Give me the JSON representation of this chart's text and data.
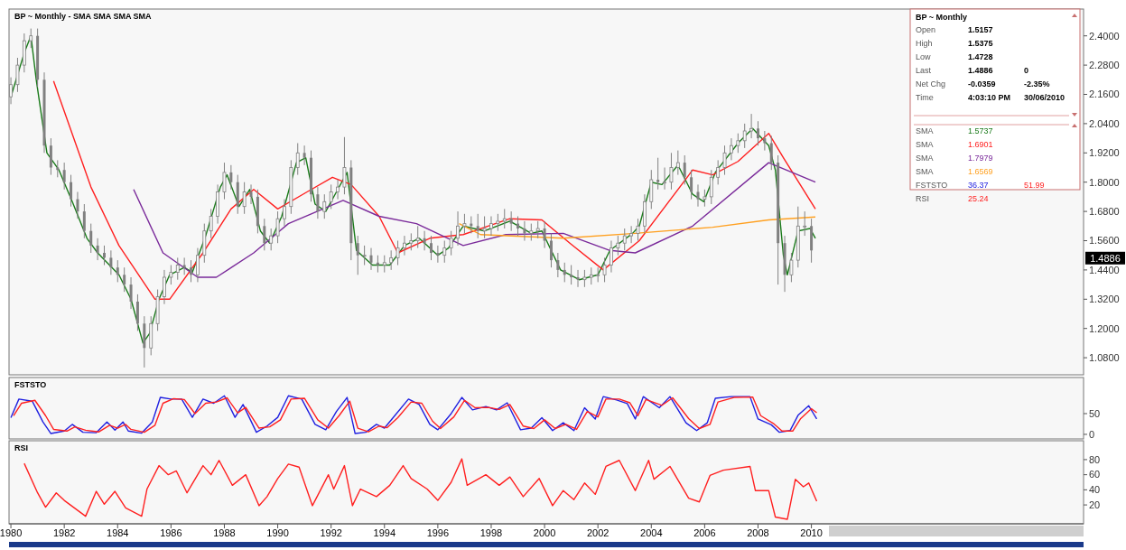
{
  "chart_data": [
    {
      "type": "candlestick",
      "title": "BP ~ Monthly  -  SMA SMA SMA SMA",
      "color": "#808080",
      "xlim": [
        1979.93,
        2020.2
      ],
      "ylim": [
        1.01,
        2.51
      ],
      "tick_labels": "y",
      "yticks": [
        {
          "value": 2.4,
          "label": "2.4000"
        },
        {
          "value": 2.28,
          "label": "2.2800"
        },
        {
          "value": 2.16,
          "label": "2.1600"
        },
        {
          "value": 2.04,
          "label": "2.0400"
        },
        {
          "value": 1.92,
          "label": "1.9200"
        },
        {
          "value": 1.8,
          "label": "1.8000"
        },
        {
          "value": 1.68,
          "label": "1.6800"
        },
        {
          "value": 1.56,
          "label": "1.5600"
        },
        {
          "value": 1.44,
          "label": "1.4400"
        },
        {
          "value": 1.32,
          "label": "1.3200"
        },
        {
          "value": 1.2,
          "label": "1.2000"
        },
        {
          "value": 1.08,
          "label": "1.0800"
        }
      ],
      "annotations": [
        {
          "text": "1.4886",
          "y": 1.4886
        }
      ],
      "x": [
        1980,
        1980.25,
        1980.5,
        1980.75,
        1981,
        1981.25,
        1981.5,
        1981.75,
        1982,
        1982.25,
        1982.5,
        1982.75,
        1983,
        1983.25,
        1983.5,
        1983.75,
        1984,
        1984.25,
        1984.5,
        1984.75,
        1985,
        1985.25,
        1985.5,
        1985.75,
        1986,
        1986.25,
        1986.5,
        1986.75,
        1987,
        1987.25,
        1987.5,
        1987.75,
        1988,
        1988.25,
        1988.5,
        1988.75,
        1989,
        1989.25,
        1989.5,
        1989.75,
        1990,
        1990.25,
        1990.5,
        1990.75,
        1991,
        1991.25,
        1991.5,
        1991.75,
        1992,
        1992.25,
        1992.5,
        1992.75,
        1993,
        1993.25,
        1993.5,
        1993.75,
        1994,
        1994.25,
        1994.5,
        1994.75,
        1995,
        1995.25,
        1995.5,
        1995.75,
        1996,
        1996.25,
        1996.5,
        1996.75,
        1997,
        1997.25,
        1997.5,
        1997.75,
        1998,
        1998.25,
        1998.5,
        1998.75,
        1999,
        1999.25,
        1999.5,
        1999.75,
        2000,
        2000.25,
        2000.5,
        2000.75,
        2001,
        2001.25,
        2001.5,
        2001.75,
        2002,
        2002.25,
        2002.5,
        2002.75,
        2003,
        2003.25,
        2003.5,
        2003.75,
        2004,
        2004.25,
        2004.5,
        2004.75,
        2005,
        2005.25,
        2005.5,
        2005.75,
        2006,
        2006.25,
        2006.5,
        2006.75,
        2007,
        2007.25,
        2007.5,
        2007.75,
        2008,
        2008.25,
        2008.5,
        2008.75,
        2009,
        2009.25,
        2009.5,
        2009.75,
        2010
      ],
      "ohlc": [
        [
          2.15,
          2.23,
          2.12,
          2.2
        ],
        [
          2.2,
          2.31,
          2.17,
          2.28
        ],
        [
          2.28,
          2.41,
          2.25,
          2.38
        ],
        [
          2.38,
          2.43,
          2.35,
          2.4
        ],
        [
          2.4,
          2.43,
          2.19,
          2.22
        ],
        [
          2.22,
          2.25,
          1.92,
          1.95
        ],
        [
          1.95,
          1.98,
          1.83,
          1.86
        ],
        [
          1.86,
          1.89,
          1.82,
          1.85
        ],
        [
          1.85,
          1.88,
          1.77,
          1.8
        ],
        [
          1.8,
          1.83,
          1.7,
          1.73
        ],
        [
          1.73,
          1.76,
          1.65,
          1.68
        ],
        [
          1.68,
          1.71,
          1.57,
          1.6
        ],
        [
          1.6,
          1.63,
          1.51,
          1.54
        ],
        [
          1.54,
          1.57,
          1.48,
          1.51
        ],
        [
          1.51,
          1.54,
          1.46,
          1.49
        ],
        [
          1.49,
          1.52,
          1.42,
          1.45
        ],
        [
          1.45,
          1.48,
          1.39,
          1.42
        ],
        [
          1.42,
          1.45,
          1.35,
          1.38
        ],
        [
          1.38,
          1.41,
          1.28,
          1.31
        ],
        [
          1.31,
          1.34,
          1.19,
          1.22
        ],
        [
          1.22,
          1.25,
          1.04,
          1.12
        ],
        [
          1.12,
          1.25,
          1.09,
          1.22
        ],
        [
          1.22,
          1.36,
          1.19,
          1.33
        ],
        [
          1.33,
          1.44,
          1.3,
          1.41
        ],
        [
          1.41,
          1.46,
          1.38,
          1.43
        ],
        [
          1.43,
          1.49,
          1.4,
          1.46
        ],
        [
          1.46,
          1.49,
          1.42,
          1.45
        ],
        [
          1.45,
          1.48,
          1.39,
          1.42
        ],
        [
          1.42,
          1.53,
          1.39,
          1.5
        ],
        [
          1.5,
          1.63,
          1.47,
          1.6
        ],
        [
          1.6,
          1.69,
          1.57,
          1.66
        ],
        [
          1.66,
          1.79,
          1.63,
          1.76
        ],
        [
          1.76,
          1.88,
          1.73,
          1.84
        ],
        [
          1.84,
          1.87,
          1.77,
          1.8
        ],
        [
          1.8,
          1.83,
          1.67,
          1.7
        ],
        [
          1.7,
          1.8,
          1.67,
          1.76
        ],
        [
          1.76,
          1.79,
          1.71,
          1.74
        ],
        [
          1.74,
          1.77,
          1.59,
          1.62
        ],
        [
          1.62,
          1.65,
          1.52,
          1.55
        ],
        [
          1.55,
          1.61,
          1.52,
          1.58
        ],
        [
          1.58,
          1.68,
          1.55,
          1.65
        ],
        [
          1.65,
          1.73,
          1.62,
          1.7
        ],
        [
          1.7,
          1.89,
          1.67,
          1.86
        ],
        [
          1.86,
          1.96,
          1.83,
          1.92
        ],
        [
          1.92,
          1.95,
          1.87,
          1.9
        ],
        [
          1.9,
          1.93,
          1.72,
          1.75
        ],
        [
          1.75,
          1.78,
          1.65,
          1.68
        ],
        [
          1.68,
          1.75,
          1.65,
          1.72
        ],
        [
          1.72,
          1.79,
          1.69,
          1.76
        ],
        [
          1.76,
          1.81,
          1.73,
          1.78
        ],
        [
          1.78,
          1.985,
          1.75,
          1.86
        ],
        [
          1.86,
          1.89,
          1.48,
          1.55
        ],
        [
          1.55,
          1.58,
          1.42,
          1.5
        ],
        [
          1.5,
          1.54,
          1.46,
          1.5
        ],
        [
          1.5,
          1.53,
          1.44,
          1.47
        ],
        [
          1.47,
          1.5,
          1.43,
          1.46
        ],
        [
          1.46,
          1.5,
          1.43,
          1.47
        ],
        [
          1.47,
          1.52,
          1.44,
          1.49
        ],
        [
          1.49,
          1.56,
          1.46,
          1.53
        ],
        [
          1.53,
          1.58,
          1.5,
          1.55
        ],
        [
          1.55,
          1.59,
          1.52,
          1.56
        ],
        [
          1.56,
          1.62,
          1.53,
          1.57
        ],
        [
          1.57,
          1.6,
          1.52,
          1.55
        ],
        [
          1.55,
          1.58,
          1.48,
          1.51
        ],
        [
          1.51,
          1.54,
          1.47,
          1.5
        ],
        [
          1.5,
          1.56,
          1.47,
          1.53
        ],
        [
          1.53,
          1.6,
          1.5,
          1.57
        ],
        [
          1.57,
          1.68,
          1.54,
          1.62
        ],
        [
          1.62,
          1.67,
          1.59,
          1.63
        ],
        [
          1.63,
          1.66,
          1.59,
          1.62
        ],
        [
          1.62,
          1.67,
          1.57,
          1.6
        ],
        [
          1.6,
          1.66,
          1.57,
          1.61
        ],
        [
          1.61,
          1.66,
          1.58,
          1.63
        ],
        [
          1.63,
          1.67,
          1.6,
          1.64
        ],
        [
          1.64,
          1.69,
          1.61,
          1.65
        ],
        [
          1.65,
          1.68,
          1.6,
          1.63
        ],
        [
          1.63,
          1.66,
          1.58,
          1.61
        ],
        [
          1.61,
          1.64,
          1.56,
          1.59
        ],
        [
          1.59,
          1.63,
          1.56,
          1.6
        ],
        [
          1.6,
          1.64,
          1.57,
          1.61
        ],
        [
          1.61,
          1.64,
          1.53,
          1.56
        ],
        [
          1.56,
          1.59,
          1.45,
          1.48
        ],
        [
          1.48,
          1.51,
          1.41,
          1.44
        ],
        [
          1.44,
          1.47,
          1.39,
          1.42
        ],
        [
          1.42,
          1.46,
          1.38,
          1.41
        ],
        [
          1.41,
          1.44,
          1.37,
          1.4
        ],
        [
          1.4,
          1.44,
          1.37,
          1.41
        ],
        [
          1.41,
          1.45,
          1.38,
          1.42
        ],
        [
          1.42,
          1.45,
          1.39,
          1.42
        ],
        [
          1.42,
          1.49,
          1.39,
          1.46
        ],
        [
          1.46,
          1.56,
          1.43,
          1.53
        ],
        [
          1.53,
          1.58,
          1.5,
          1.55
        ],
        [
          1.55,
          1.61,
          1.52,
          1.58
        ],
        [
          1.58,
          1.62,
          1.55,
          1.59
        ],
        [
          1.59,
          1.65,
          1.56,
          1.62
        ],
        [
          1.62,
          1.75,
          1.59,
          1.72
        ],
        [
          1.72,
          1.85,
          1.69,
          1.81
        ],
        [
          1.81,
          1.9,
          1.77,
          1.8
        ],
        [
          1.8,
          1.86,
          1.77,
          1.8
        ],
        [
          1.8,
          1.92,
          1.77,
          1.86
        ],
        [
          1.86,
          1.93,
          1.83,
          1.88
        ],
        [
          1.88,
          1.91,
          1.79,
          1.82
        ],
        [
          1.82,
          1.85,
          1.73,
          1.76
        ],
        [
          1.76,
          1.79,
          1.7,
          1.73
        ],
        [
          1.73,
          1.77,
          1.7,
          1.74
        ],
        [
          1.74,
          1.85,
          1.71,
          1.82
        ],
        [
          1.82,
          1.89,
          1.79,
          1.86
        ],
        [
          1.86,
          1.95,
          1.83,
          1.92
        ],
        [
          1.92,
          1.98,
          1.89,
          1.95
        ],
        [
          1.95,
          2,
          1.92,
          1.97
        ],
        [
          1.97,
          2.04,
          1.94,
          2.01
        ],
        [
          2.01,
          2.08,
          1.98,
          2.02
        ],
        [
          2.02,
          2.05,
          1.95,
          1.98
        ],
        [
          1.98,
          2.01,
          1.93,
          1.96
        ],
        [
          1.96,
          1.99,
          1.85,
          1.88
        ],
        [
          1.88,
          1.91,
          1.38,
          1.55
        ],
        [
          1.55,
          1.58,
          1.35,
          1.42
        ],
        [
          1.42,
          1.51,
          1.39,
          1.48
        ],
        [
          1.48,
          1.7,
          1.45,
          1.62
        ],
        [
          1.62,
          1.68,
          1.58,
          1.62
        ],
        [
          1.62,
          1.65,
          1.47,
          1.52
        ]
      ],
      "series": [
        {
          "type": "line",
          "color": "#1a7a1a",
          "x": [
            1980,
            1980.5,
            1980.75,
            1980.95,
            1981.35,
            1981.8,
            1982.3,
            1982.85,
            1983.25,
            1984.05,
            1984.5,
            1984.95,
            1985.2,
            1985.55,
            1985.95,
            1986.5,
            1986.8,
            1987.3,
            1987.85,
            1988.1,
            1988.55,
            1988.95,
            1989.35,
            1989.7,
            1990.15,
            1990.7,
            1991.05,
            1991.4,
            1991.8,
            1992.2,
            1992.6,
            1992.95,
            1993.55,
            1994.2,
            1994.75,
            1995.3,
            1996,
            1996.4,
            1996.95,
            1997.75,
            1998.7,
            1999.5,
            1999.9,
            2000.6,
            2001.3,
            2002,
            2002.45,
            2003.3,
            2003.55,
            2004,
            2004.4,
            2005,
            2005.55,
            2005.97,
            2006.4,
            2007.25,
            2007.8,
            2008.4,
            2008.65,
            2008.95,
            2009.1,
            2009.5,
            2009.95,
            2010.15
          ],
          "values": [
            2.15,
            2.33,
            2.4,
            2.22,
            1.92,
            1.85,
            1.72,
            1.57,
            1.51,
            1.42,
            1.32,
            1.14,
            1.18,
            1.32,
            1.42,
            1.45,
            1.43,
            1.58,
            1.78,
            1.83,
            1.7,
            1.77,
            1.6,
            1.55,
            1.66,
            1.88,
            1.9,
            1.71,
            1.68,
            1.76,
            1.84,
            1.52,
            1.46,
            1.46,
            1.54,
            1.57,
            1.5,
            1.53,
            1.62,
            1.6,
            1.64,
            1.59,
            1.6,
            1.44,
            1.4,
            1.42,
            1.52,
            1.59,
            1.62,
            1.8,
            1.79,
            1.87,
            1.75,
            1.72,
            1.84,
            1.96,
            2.02,
            1.95,
            1.85,
            1.5,
            1.42,
            1.6,
            1.61,
            1.57
          ]
        },
        {
          "type": "line",
          "color": "#ff2020",
          "x": [
            1981.6,
            1983,
            1984.05,
            1985.4,
            1985.95,
            1987.2,
            1988.25,
            1989.1,
            1990,
            1991.1,
            1992.05,
            1992.75,
            1993.8,
            1994.5,
            1995.7,
            1996.95,
            1998.7,
            1999.9,
            2001,
            2002.2,
            2003.55,
            2005.55,
            2006.3,
            2007.25,
            2008.4,
            2008.95,
            2010.15
          ],
          "values": [
            2.215,
            1.78,
            1.54,
            1.32,
            1.32,
            1.51,
            1.69,
            1.77,
            1.69,
            1.76,
            1.82,
            1.79,
            1.66,
            1.51,
            1.57,
            1.585,
            1.65,
            1.645,
            1.545,
            1.44,
            1.56,
            1.85,
            1.83,
            1.885,
            2,
            1.9,
            1.69
          ]
        },
        {
          "type": "line",
          "color": "#7a2a9a",
          "x": [
            1984.6,
            1985.7,
            1987,
            1987.7,
            1989.1,
            1990.4,
            1992.45,
            1993.8,
            1995.2,
            1996.95,
            1998.55,
            2000.7,
            2002.45,
            2003.4,
            2005.55,
            2008.4,
            2010.15
          ],
          "values": [
            1.77,
            1.51,
            1.41,
            1.41,
            1.51,
            1.63,
            1.725,
            1.66,
            1.63,
            1.54,
            1.585,
            1.59,
            1.52,
            1.51,
            1.62,
            1.88,
            1.8
          ]
        },
        {
          "type": "line",
          "color": "#ffa020",
          "x": [
            1996.8,
            1997.6,
            2000.7,
            2003.4,
            2006.3,
            2008.4,
            2010.15
          ],
          "values": [
            1.63,
            1.585,
            1.57,
            1.59,
            1.615,
            1.645,
            1.657
          ]
        }
      ]
    },
    {
      "type": "line",
      "title": "FSTSTO",
      "xlim": [
        1979.93,
        2020.2
      ],
      "ylim": [
        -11,
        137
      ],
      "yticks": [
        0,
        50
      ],
      "tick_labels": "y",
      "series": [
        {
          "color": "#2020e0",
          "x": [
            1980,
            1980.3,
            1980.8,
            1981.2,
            1981.5,
            1982,
            1982.3,
            1982.7,
            1983.2,
            1983.6,
            1983.9,
            1984.2,
            1984.4,
            1984.9,
            1985.3,
            1985.6,
            1986,
            1986.4,
            1986.8,
            1987.2,
            1987.6,
            1988,
            1988.4,
            1988.7,
            1989.2,
            1989.6,
            1990,
            1990.4,
            1990.9,
            1991.4,
            1991.8,
            1992.2,
            1992.6,
            1992.9,
            1993.3,
            1993.7,
            1994,
            1994.4,
            1994.9,
            1995.3,
            1995.7,
            1996,
            1996.5,
            1996.9,
            1997.3,
            1997.8,
            1998.2,
            1998.6,
            1999.1,
            1999.5,
            1999.9,
            2000.3,
            2000.7,
            2001.1,
            2001.5,
            2001.9,
            2002.2,
            2002.7,
            2003.1,
            2003.4,
            2003.7,
            2004.3,
            2004.7,
            2005.3,
            2005.7,
            2006.1,
            2006.4,
            2007,
            2007.7,
            2008,
            2008.5,
            2008.8,
            2009.2,
            2009.5,
            2009.9,
            2010.2
          ],
          "values": [
            40,
            85,
            80,
            30,
            2,
            8,
            24,
            5,
            4,
            30,
            10,
            30,
            8,
            3,
            30,
            89,
            85,
            85,
            41,
            85,
            75,
            93,
            41,
            72,
            5,
            20,
            41,
            93,
            85,
            24,
            11,
            55,
            89,
            2,
            5,
            24,
            15,
            46,
            85,
            72,
            24,
            11,
            50,
            89,
            59,
            67,
            59,
            76,
            11,
            15,
            40,
            9,
            28,
            9,
            64,
            37,
            91,
            83,
            74,
            37,
            91,
            64,
            91,
            28,
            9,
            28,
            87,
            91,
            91,
            37,
            23,
            5,
            9,
            46,
            69,
            37
          ]
        },
        {
          "color": "#ff2020",
          "x": [
            1980.1,
            1980.4,
            1980.9,
            1981.3,
            1981.6,
            1982.1,
            1982.4,
            1982.8,
            1983.3,
            1983.7,
            1984,
            1984.3,
            1984.5,
            1985,
            1985.4,
            1985.7,
            1986.1,
            1986.5,
            1986.9,
            1987.3,
            1987.7,
            1988.1,
            1988.5,
            1988.8,
            1989.3,
            1989.7,
            1990.1,
            1990.5,
            1991,
            1991.5,
            1991.9,
            1992.3,
            1992.7,
            1993,
            1993.4,
            1993.8,
            1994.1,
            1994.5,
            1995,
            1995.4,
            1995.8,
            1996.1,
            1996.6,
            1997,
            1997.4,
            1997.9,
            1998.3,
            1998.7,
            1999.2,
            1999.6,
            2000,
            2000.4,
            2000.8,
            2001.2,
            2001.6,
            2002,
            2002.3,
            2002.8,
            2003.2,
            2003.5,
            2003.8,
            2004.4,
            2004.8,
            2005.4,
            2005.8,
            2006.2,
            2006.5,
            2007.1,
            2007.8,
            2008.1,
            2008.6,
            2008.9,
            2009.3,
            2009.6,
            2010,
            2010.2
          ],
          "values": [
            45,
            75,
            82,
            45,
            12,
            8,
            18,
            10,
            6,
            22,
            15,
            24,
            12,
            5,
            22,
            75,
            86,
            84,
            50,
            75,
            78,
            88,
            52,
            65,
            15,
            18,
            35,
            85,
            87,
            35,
            15,
            45,
            80,
            15,
            6,
            20,
            16,
            40,
            78,
            75,
            32,
            14,
            42,
            82,
            64,
            65,
            60,
            72,
            20,
            14,
            35,
            14,
            24,
            12,
            55,
            42,
            85,
            85,
            76,
            45,
            84,
            70,
            88,
            38,
            14,
            24,
            78,
            89,
            90,
            45,
            25,
            8,
            8,
            38,
            62,
            52
          ]
        }
      ]
    },
    {
      "type": "line",
      "title": "RSI",
      "xlim": [
        1979.93,
        2020.2
      ],
      "ylim": [
        -5,
        105
      ],
      "yticks": [
        20,
        40,
        60,
        80
      ],
      "xticks": [
        1980,
        1982,
        1984,
        1986,
        1988,
        1990,
        1992,
        1994,
        1996,
        1998,
        2000,
        2002,
        2004,
        2006,
        2008,
        2010
      ],
      "series": [
        {
          "color": "#ff2020",
          "x": [
            1980.5,
            1981,
            1981.3,
            1981.7,
            1982,
            1982.8,
            1983.2,
            1983.5,
            1983.9,
            1984.3,
            1984.9,
            1985.1,
            1985.55,
            1985.9,
            1986.2,
            1986.6,
            1987.2,
            1987.5,
            1987.8,
            1988.3,
            1988.8,
            1989.3,
            1989.6,
            1990,
            1990.4,
            1990.8,
            1991.3,
            1991.9,
            1992.1,
            1992.5,
            1992.8,
            1993.1,
            1993.7,
            1994.2,
            1994.7,
            1995,
            1995.6,
            1996,
            1996.5,
            1996.9,
            1997.1,
            1997.8,
            1998.3,
            1998.7,
            1999.2,
            1999.8,
            2000.3,
            2000.7,
            2001.1,
            2001.5,
            2001.9,
            2002.3,
            2002.8,
            2003.4,
            2003.9,
            2004.1,
            2004.7,
            2005.4,
            2005.8,
            2006.2,
            2006.7,
            2007.7,
            2007.9,
            2008.4,
            2008.65,
            2009.1,
            2009.4,
            2009.7,
            2009.9,
            2010.2
          ],
          "values": [
            75,
            36,
            17,
            36,
            26,
            5,
            38,
            21,
            38,
            16,
            5,
            41,
            72,
            60,
            65,
            36,
            72,
            60,
            79,
            46,
            60,
            19,
            31,
            55,
            74,
            70,
            19,
            60,
            41,
            72,
            19,
            41,
            31,
            46,
            72,
            55,
            41,
            26,
            50,
            81,
            46,
            60,
            46,
            57,
            31,
            55,
            19,
            39,
            27,
            49,
            34,
            71,
            79,
            39,
            79,
            54,
            71,
            29,
            24,
            59,
            66,
            71,
            39,
            39,
            4,
            1,
            54,
            44,
            49,
            25
          ]
        }
      ]
    },
    {
      "type": "other",
      "title": "BP ~ Monthly",
      "annotations": [
        "Open",
        "1.5157",
        "High",
        "1.5375",
        "Low",
        "1.4728",
        "Last",
        "1.4886",
        "0",
        "Net Chg",
        "-0.0359",
        "-2.35%",
        "Time",
        "4:03:10 PM",
        "30/06/2010",
        "SMA",
        "1.5737",
        "SMA",
        "1.6901",
        "SMA",
        "1.7979",
        "SMA",
        "1.6569",
        "FSTSTO",
        "36.37",
        "51.99",
        "RSI",
        "25.24"
      ]
    }
  ]
}
